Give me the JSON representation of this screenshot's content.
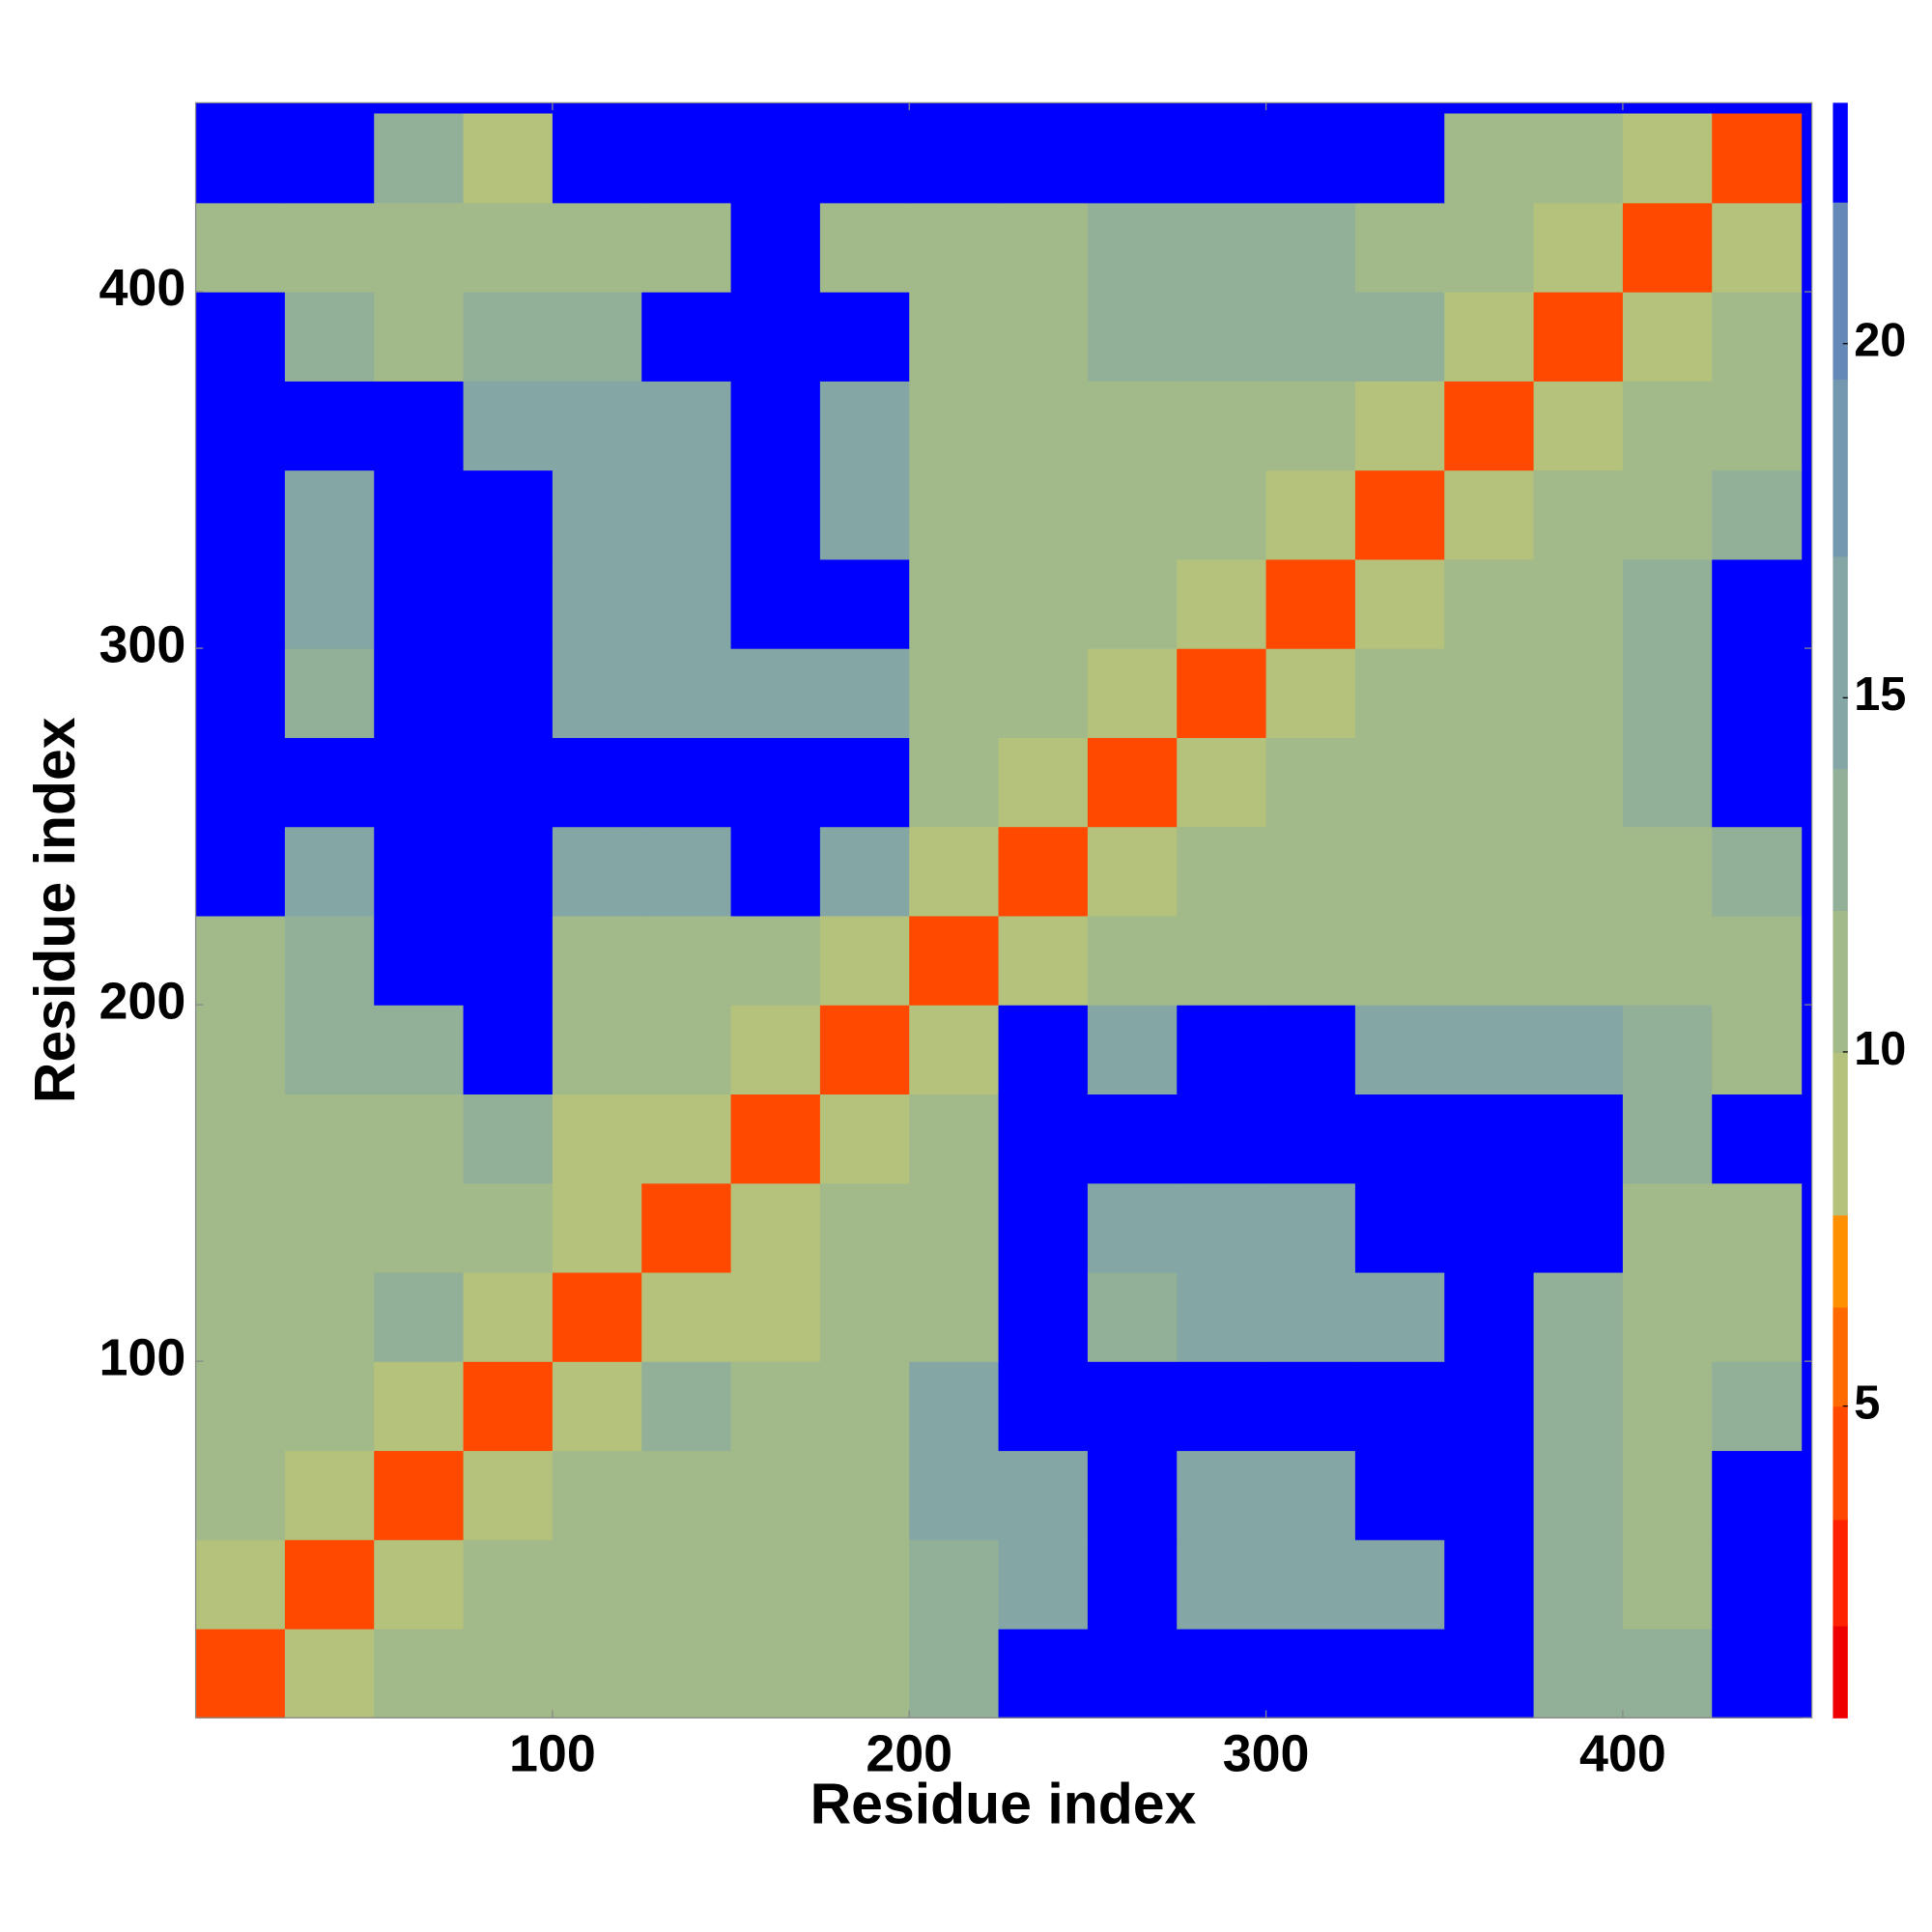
{
  "chart_data": {
    "type": "heatmap",
    "x_label": "Residue index",
    "y_label": "Residue index",
    "x_bins": [
      0,
      25,
      50,
      75,
      100,
      125,
      150,
      175,
      200,
      225,
      250,
      275,
      300,
      325,
      350,
      375,
      400,
      425,
      450
    ],
    "y_bins": [
      0,
      25,
      50,
      75,
      100,
      125,
      150,
      175,
      200,
      225,
      250,
      275,
      300,
      325,
      350,
      375,
      400,
      425,
      450
    ],
    "xlim": [
      0,
      453
    ],
    "ylim": [
      0,
      453
    ],
    "xticks": [
      100,
      200,
      300,
      400
    ],
    "yticks": [
      100,
      200,
      300,
      400
    ],
    "background": "#0000ff",
    "z": [
      [
        4,
        8,
        10,
        10,
        10,
        10,
        10,
        10,
        13,
        23,
        23,
        23,
        23,
        23,
        23,
        13,
        12,
        23
      ],
      [
        8,
        4,
        8,
        10,
        10,
        10,
        10,
        10,
        13,
        14,
        23,
        14,
        14,
        14,
        23,
        13,
        10,
        23
      ],
      [
        10,
        8,
        4,
        8,
        10,
        10,
        10,
        10,
        14,
        14,
        23,
        14,
        14,
        23,
        23,
        13,
        10,
        23
      ],
      [
        10,
        10,
        8,
        4,
        8,
        12,
        10,
        10,
        14,
        23,
        23,
        23,
        23,
        23,
        23,
        13,
        10,
        12
      ],
      [
        10,
        10,
        12,
        8,
        4,
        8,
        8,
        10,
        10,
        23,
        12,
        14,
        14,
        14,
        23,
        13,
        10,
        10
      ],
      [
        10,
        10,
        10,
        10,
        8,
        4,
        8,
        10,
        10,
        23,
        14,
        14,
        14,
        23,
        23,
        23,
        10,
        10
      ],
      [
        10,
        10,
        10,
        13,
        8,
        8,
        4,
        8,
        10,
        23,
        23,
        23,
        23,
        23,
        23,
        23,
        12,
        23
      ],
      [
        10,
        12,
        13,
        23,
        10,
        10,
        8,
        4,
        8,
        23,
        14,
        23,
        23,
        14,
        14,
        14,
        12,
        10
      ],
      [
        10,
        13,
        23,
        23,
        10,
        10,
        10,
        8,
        4,
        8,
        10,
        10,
        10,
        10,
        10,
        10,
        10,
        10
      ],
      [
        23,
        14,
        23,
        23,
        14,
        14,
        23,
        14,
        8,
        4,
        8,
        10,
        10,
        10,
        10,
        10,
        10,
        12
      ],
      [
        23,
        23,
        23,
        23,
        23,
        23,
        23,
        23,
        10,
        8,
        4,
        8,
        10,
        10,
        10,
        10,
        12,
        23
      ],
      [
        23,
        13,
        23,
        23,
        14,
        14,
        14,
        14,
        10,
        10,
        8,
        4,
        8,
        10,
        10,
        10,
        13,
        23
      ],
      [
        23,
        14,
        23,
        23,
        14,
        14,
        23,
        23,
        10,
        10,
        10,
        8,
        4,
        8,
        10,
        10,
        12,
        23
      ],
      [
        23,
        14,
        23,
        23,
        14,
        14,
        23,
        14,
        10,
        10,
        10,
        10,
        8,
        4,
        8,
        10,
        10,
        13
      ],
      [
        23,
        23,
        23,
        14,
        14,
        14,
        23,
        14,
        10,
        10,
        10,
        10,
        10,
        8,
        4,
        8,
        10,
        10
      ],
      [
        23,
        12,
        10,
        12,
        13,
        23,
        23,
        23,
        10,
        10,
        12,
        13,
        13,
        13,
        8,
        4,
        8,
        10
      ],
      [
        10,
        10,
        10,
        10,
        10,
        10,
        23,
        10,
        10,
        10,
        12,
        13,
        13,
        10,
        10,
        8,
        4,
        8
      ],
      [
        23,
        23,
        12,
        8,
        23,
        23,
        23,
        23,
        23,
        23,
        23,
        23,
        23,
        23,
        10,
        10,
        8,
        4
      ]
    ],
    "colorbar": {
      "clim": [
        0.6,
        23.4
      ],
      "ticks": [
        5,
        10,
        15,
        20
      ],
      "levels": [
        0.6,
        1.9,
        3.4,
        5,
        6.4,
        7.7,
        10,
        12,
        14,
        17,
        19.5,
        22,
        23.4
      ],
      "colors": [
        "#ee0000",
        "#ff2200",
        "#ff4800",
        "#ff6a00",
        "#ff9000",
        "#b4c27c",
        "#a2b98a",
        "#92b098",
        "#84a6a4",
        "#7498b0",
        "#6488b8",
        "#0000ff"
      ]
    }
  }
}
